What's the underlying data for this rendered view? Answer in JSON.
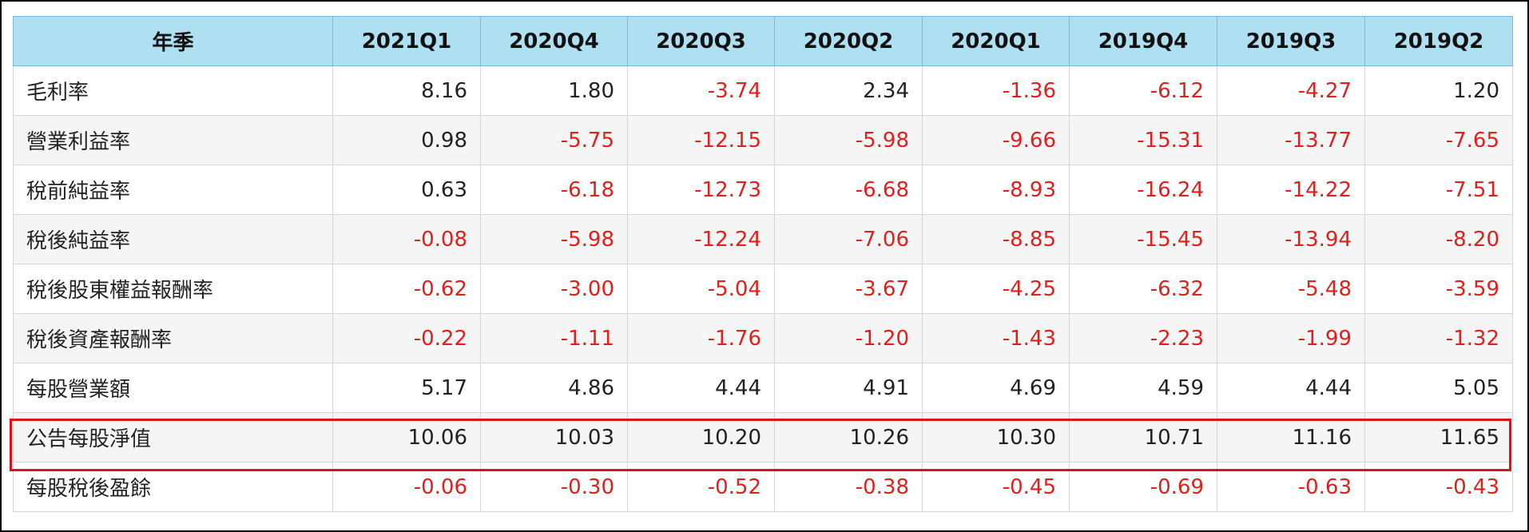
{
  "table": {
    "header": [
      "年季",
      "2021Q1",
      "2020Q4",
      "2020Q3",
      "2020Q2",
      "2020Q1",
      "2019Q4",
      "2019Q3",
      "2019Q2"
    ],
    "rows": [
      {
        "label": "毛利率",
        "values": [
          "8.16",
          "1.80",
          "-3.74",
          "2.34",
          "-1.36",
          "-6.12",
          "-4.27",
          "1.20"
        ]
      },
      {
        "label": "營業利益率",
        "values": [
          "0.98",
          "-5.75",
          "-12.15",
          "-5.98",
          "-9.66",
          "-15.31",
          "-13.77",
          "-7.65"
        ]
      },
      {
        "label": "稅前純益率",
        "values": [
          "0.63",
          "-6.18",
          "-12.73",
          "-6.68",
          "-8.93",
          "-16.24",
          "-14.22",
          "-7.51"
        ]
      },
      {
        "label": "稅後純益率",
        "values": [
          "-0.08",
          "-5.98",
          "-12.24",
          "-7.06",
          "-8.85",
          "-15.45",
          "-13.94",
          "-8.20"
        ]
      },
      {
        "label": "稅後股東權益報酬率",
        "values": [
          "-0.62",
          "-3.00",
          "-5.04",
          "-3.67",
          "-4.25",
          "-6.32",
          "-5.48",
          "-3.59"
        ]
      },
      {
        "label": "稅後資產報酬率",
        "values": [
          "-0.22",
          "-1.11",
          "-1.76",
          "-1.20",
          "-1.43",
          "-2.23",
          "-1.99",
          "-1.32"
        ]
      },
      {
        "label": "每股營業額",
        "values": [
          "5.17",
          "4.86",
          "4.44",
          "4.91",
          "4.69",
          "4.59",
          "4.44",
          "5.05"
        ]
      },
      {
        "label": "公告每股淨值",
        "values": [
          "10.06",
          "10.03",
          "10.20",
          "10.26",
          "10.30",
          "10.71",
          "11.16",
          "11.65"
        ]
      },
      {
        "label": "每股稅後盈餘",
        "values": [
          "-0.06",
          "-0.30",
          "-0.52",
          "-0.38",
          "-0.45",
          "-0.69",
          "-0.63",
          "-0.43"
        ]
      }
    ],
    "highlighted_row": "公告每股淨值"
  },
  "colors": {
    "header_bg": "#aee0f2",
    "negative_text": "#e0201c",
    "highlight_border": "#d9121b",
    "zebra_bg": "#f5f5f5"
  }
}
